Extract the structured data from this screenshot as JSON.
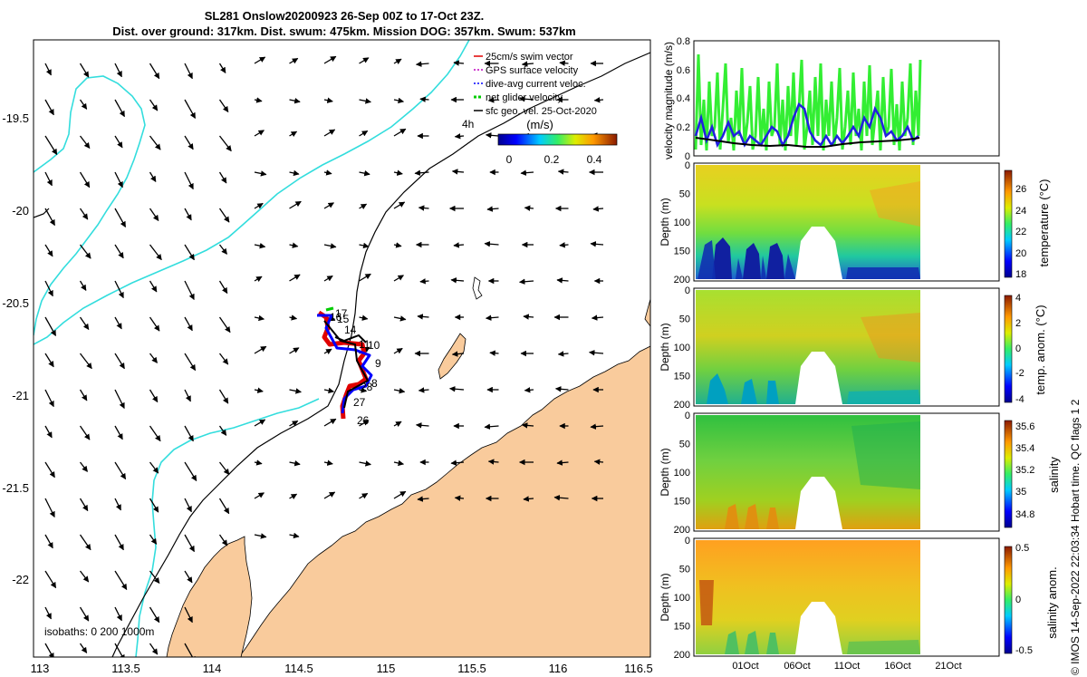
{
  "title": {
    "line1": "SL281 Onslow20200923 26-Sep 00Z to 17-Oct 23Z.",
    "line2": "Dist. over ground: 317km. Dist. swum: 475km. Mission DOG: 357km. Swum: 537km"
  },
  "map": {
    "lon_ticks": [
      "113",
      "113.5",
      "114",
      "114.5",
      "115",
      "115.5",
      "116",
      "116.5"
    ],
    "lat_ticks": [
      "-19.5",
      "-20",
      "-20.5",
      "-21",
      "-21.5",
      "-22"
    ],
    "legend": [
      {
        "label": "25cm/s swim vector",
        "color": "#e00000",
        "style": "solid"
      },
      {
        "label": "GPS surface velocity",
        "color": "#c000c0",
        "style": "dashed"
      },
      {
        "label": "dive-avg current veloc.",
        "color": "#0000ff",
        "style": "dashed"
      },
      {
        "label": "net glider velocity",
        "color": "#00cc00",
        "style": "dashed"
      },
      {
        "label": "sfc geo. vel. 25-Oct-2020",
        "color": "#000000",
        "style": "solid"
      }
    ],
    "time_step_label": "4h",
    "speed_colorbar": {
      "unit": "(m/s)",
      "ticks": [
        "0",
        "0.2",
        "0.4"
      ]
    },
    "day_labels": [
      "17",
      "16",
      "15",
      "14",
      "11",
      "10",
      "9",
      "8",
      "28",
      "27",
      "26"
    ],
    "isobath_note": "isobaths: 0   200  1000m",
    "colors": {
      "land": "#f9cb9c",
      "isobath_200": "#33dddd",
      "track": "#e00000",
      "dive_current": "#0000ff",
      "net_velocity": "#00cc00"
    }
  },
  "velocity_panel": {
    "ylabel": "velocity magnitude (m/s)",
    "yticks": [
      "0",
      "0.2",
      "0.4",
      "0.6",
      "0.8"
    ]
  },
  "sections": [
    {
      "id": "temperature",
      "label": "temperature (°C)",
      "cbar_ticks": [
        "18",
        "20",
        "22",
        "24",
        "26"
      ]
    },
    {
      "id": "temp_anom",
      "label": "temp. anom. (°C)",
      "cbar_ticks": [
        "-4",
        "-2",
        "0",
        "2",
        "4"
      ]
    },
    {
      "id": "salinity",
      "label": "salinity",
      "cbar_ticks": [
        "34.8",
        "35",
        "35.2",
        "35.4",
        "35.6"
      ]
    },
    {
      "id": "sal_anom",
      "label": "salinity anom.",
      "cbar_ticks": [
        "-0.5",
        "0",
        "0.5"
      ]
    }
  ],
  "depth_axis": {
    "label": "Depth (m)",
    "ticks": [
      "0",
      "50",
      "100",
      "150",
      "200"
    ]
  },
  "time_axis": {
    "ticks": [
      "01Oct",
      "06Oct",
      "11Oct",
      "16Oct",
      "21Oct"
    ]
  },
  "credit": "© IMOS 14-Sep-2022 22:03:34 Hobart time. QC flags 1  2"
}
